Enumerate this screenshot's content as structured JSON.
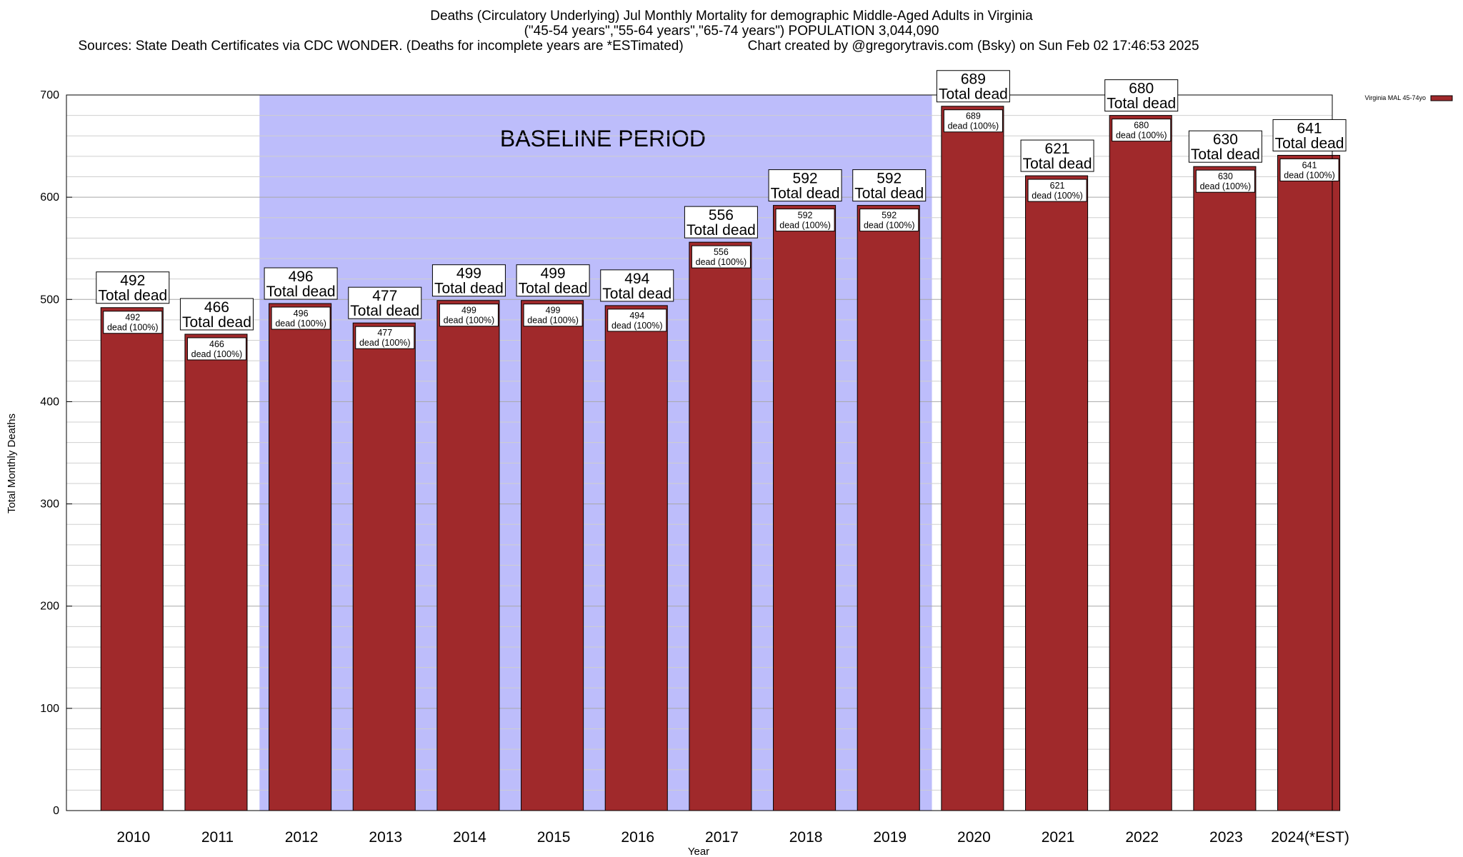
{
  "chart_data": {
    "type": "bar",
    "title": "Deaths (Circulatory Underlying) Jul Monthly Mortality for demographic Middle-Aged Adults in Virginia",
    "subtitle": "(\"45-54 years\",\"55-64 years\",\"65-74 years\") POPULATION 3,044,090",
    "sources": "Sources: State Death Certificates via CDC WONDER. (Deaths for incomplete years are *ESTimated)",
    "credit": "Chart created by @gregorytravis.com (Bsky) on Sun Feb 02 17:46:53 2025",
    "xlabel": "Year",
    "ylabel": "Total Monthly Deaths",
    "ylim": [
      0,
      700
    ],
    "y_major_ticks": [
      0,
      100,
      200,
      300,
      400,
      500,
      600,
      700
    ],
    "y_minor_step": 20,
    "grid": true,
    "legend_position": "top-right",
    "categories": [
      "2010",
      "2011",
      "2012",
      "2013",
      "2014",
      "2015",
      "2016",
      "2017",
      "2018",
      "2019",
      "2020",
      "2021",
      "2022",
      "2023",
      "2024(*EST)"
    ],
    "series": [
      {
        "name": "Virginia MAL 45-74yo",
        "values": [
          492,
          466,
          496,
          477,
          499,
          499,
          494,
          556,
          592,
          592,
          689,
          621,
          680,
          630,
          641
        ],
        "color": "#a0292b"
      }
    ],
    "total_label_suffix": "Total dead",
    "bar_label_suffix": "dead (100%)",
    "baseline_region": {
      "label": "BASELINE PERIOD",
      "from_category": "2012",
      "to_category": "2019",
      "color": "#bdbdfb"
    }
  }
}
